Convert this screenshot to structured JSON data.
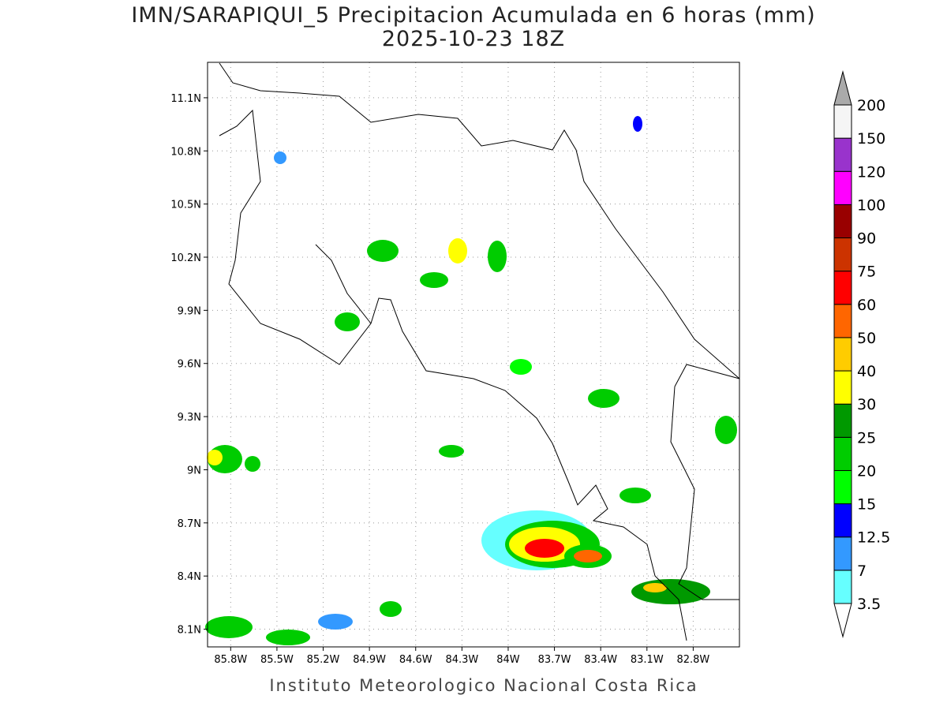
{
  "title": "IMN/SARAPIQUI_5 Precipitacion Acumulada en 6 horas (mm)",
  "subtitle": "2025-10-23 18Z",
  "map": {
    "xlim": [
      -85.95,
      -82.5
    ],
    "ylim": [
      8.0,
      11.3
    ],
    "grid": true,
    "lon_ticks": [
      {
        "value": -85.8,
        "label": "85.8W"
      },
      {
        "value": -85.5,
        "label": "85.5W"
      },
      {
        "value": -85.2,
        "label": "85.2W"
      },
      {
        "value": -84.9,
        "label": "84.9W"
      },
      {
        "value": -84.6,
        "label": "84.6W"
      },
      {
        "value": -84.3,
        "label": "84.3W"
      },
      {
        "value": -84,
        "label": "84W"
      },
      {
        "value": -83.7,
        "label": "83.7W"
      },
      {
        "value": -83.4,
        "label": "83.4W"
      },
      {
        "value": -83.1,
        "label": "83.1W"
      },
      {
        "value": -82.8,
        "label": "82.8W"
      }
    ],
    "lat_ticks": [
      {
        "value": 11.1,
        "label": "11.1N"
      },
      {
        "value": 10.8,
        "label": "10.8N"
      },
      {
        "value": 10.5,
        "label": "10.5N"
      },
      {
        "value": 10.2,
        "label": "10.2N"
      },
      {
        "value": 9.9,
        "label": "9.9N"
      },
      {
        "value": 9.6,
        "label": "9.6N"
      },
      {
        "value": 9.3,
        "label": "9.3N"
      },
      {
        "value": 9,
        "label": "9N"
      },
      {
        "value": 8.7,
        "label": "8.7N"
      },
      {
        "value": 8.4,
        "label": "8.4N"
      },
      {
        "value": 8.1,
        "label": "8.1N"
      }
    ]
  },
  "colorbar": {
    "levels": [
      3.5,
      7,
      12.5,
      15,
      20,
      25,
      30,
      40,
      50,
      60,
      75,
      90,
      100,
      120,
      150,
      200
    ],
    "colors": [
      "#66ffff",
      "#3399ff",
      "#0000ff",
      "#00ff00",
      "#00cc00",
      "#009900",
      "#ffff00",
      "#ffcc00",
      "#ff6600",
      "#ff0000",
      "#cc3300",
      "#990000",
      "#ff00ff",
      "#9933cc",
      "#f5f5f5"
    ],
    "under_color": "#ffffff",
    "over_color": "#aaaaaa"
  },
  "footer": "Instituto Meteorologico Nacional Costa Rica"
}
